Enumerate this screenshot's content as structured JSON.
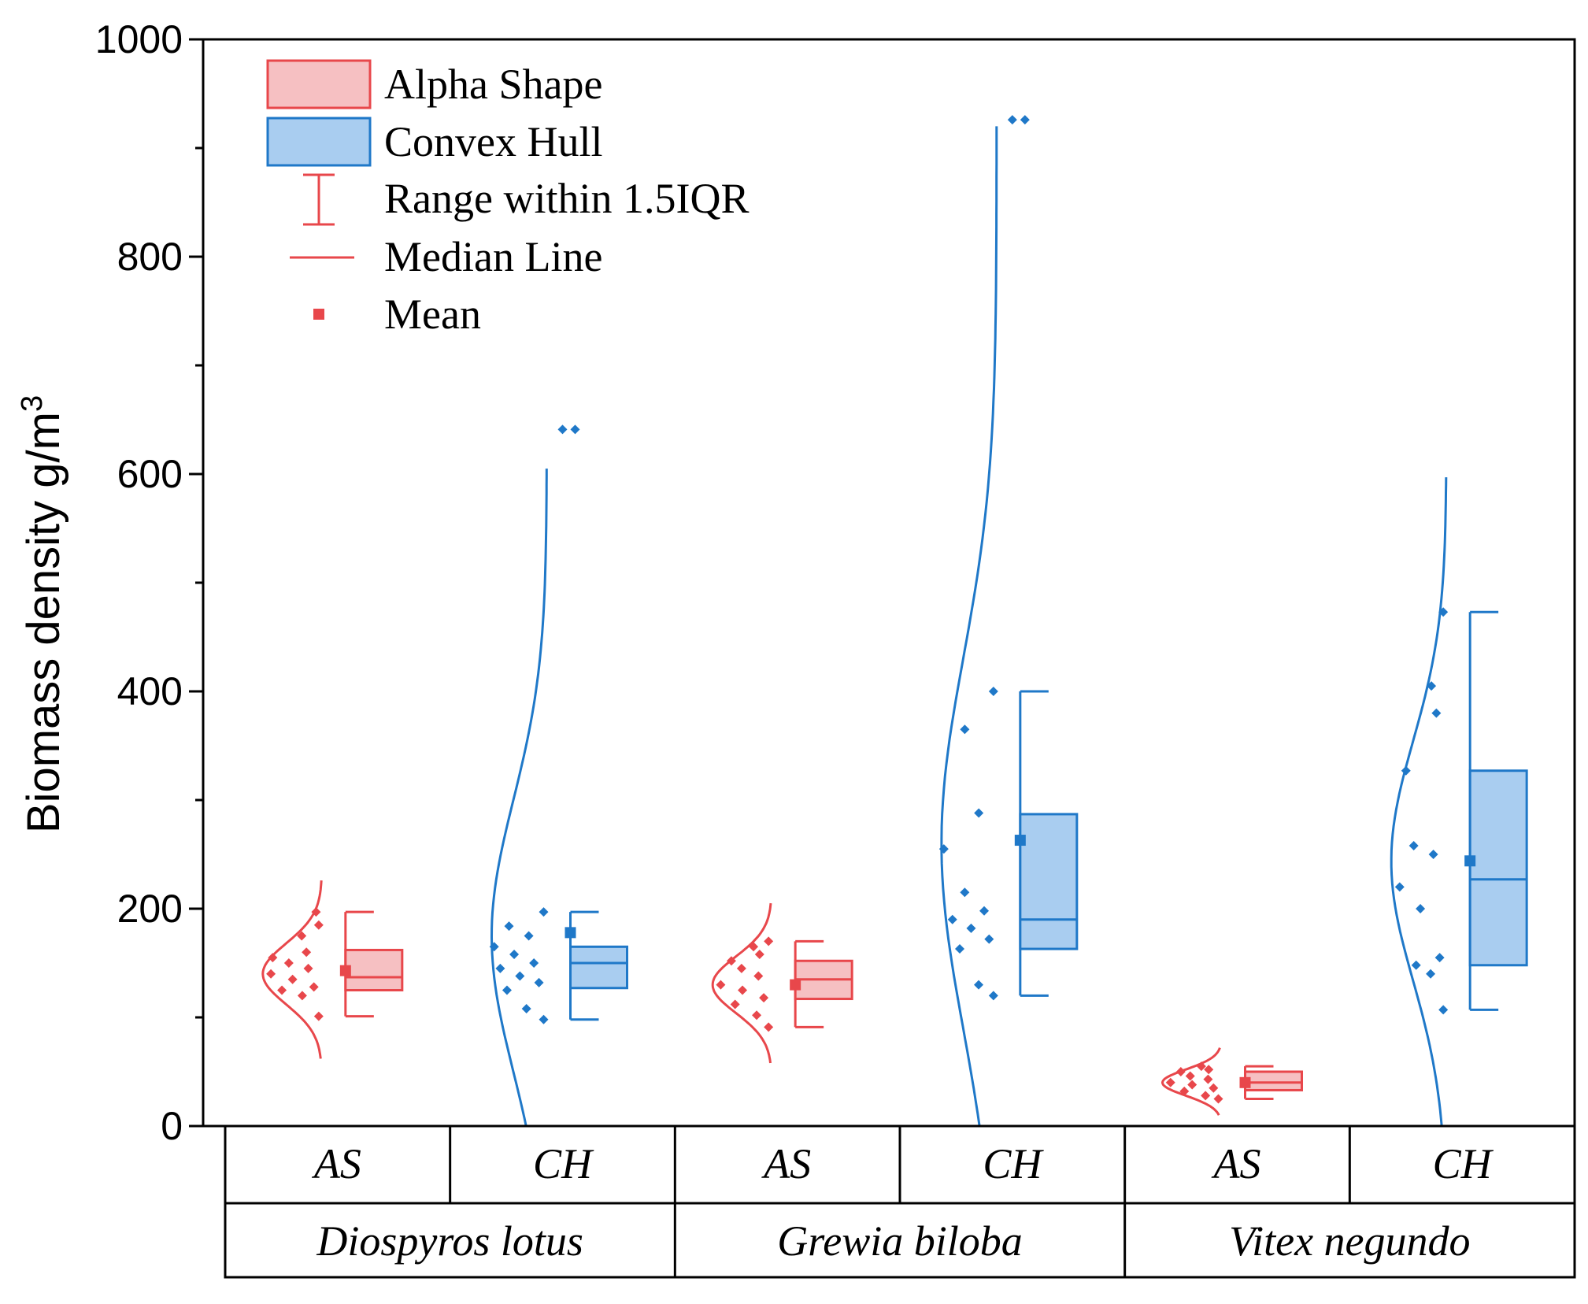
{
  "chart_data": {
    "type": "box",
    "ylabel": "Biomass density g/m",
    "ylabel_sup": "3",
    "ylim": [
      0,
      1000
    ],
    "yticks": [
      0,
      200,
      400,
      600,
      800,
      1000
    ],
    "yticks_minor": [
      100,
      300,
      500,
      700,
      900
    ],
    "colors": {
      "as_stroke": "#e8474b",
      "as_fill": "#f6c0c2",
      "ch_stroke": "#1f78c8",
      "ch_fill": "#a9cdf0"
    },
    "legend": {
      "alpha_shape": "Alpha Shape",
      "convex_hull": "Convex Hull",
      "range": "Range within 1.5IQR",
      "median": "Median Line",
      "mean": "Mean"
    },
    "species": [
      "Diospyros lotus",
      "Grewia biloba",
      "Vitex negundo"
    ],
    "methods": [
      "AS",
      "CH"
    ],
    "groups": [
      {
        "species": "Diospyros lotus",
        "method": "AS",
        "q1": 125,
        "median": 137,
        "q3": 162,
        "whisker_low": 101,
        "whisker_high": 197,
        "mean": 143,
        "points": [
          101,
          120,
          125,
          128,
          135,
          140,
          145,
          150,
          155,
          160,
          175,
          185,
          197
        ],
        "outliers": [],
        "curve": {
          "mu": 140,
          "sigma": 28,
          "lo": 62,
          "hi": 226
        }
      },
      {
        "species": "Diospyros lotus",
        "method": "CH",
        "q1": 127,
        "median": 150,
        "q3": 165,
        "whisker_low": 98,
        "whisker_high": 197,
        "mean": 178,
        "points": [
          98,
          108,
          125,
          132,
          138,
          145,
          150,
          158,
          165,
          175,
          184,
          197
        ],
        "outliers": [
          641
        ],
        "curve": {
          "mu": 175,
          "sigma": 125,
          "lo": 0,
          "hi": 605
        }
      },
      {
        "species": "Grewia biloba",
        "method": "AS",
        "q1": 117,
        "median": 135,
        "q3": 152,
        "whisker_low": 91,
        "whisker_high": 170,
        "mean": 130,
        "points": [
          91,
          102,
          112,
          118,
          125,
          130,
          138,
          145,
          152,
          158,
          165,
          170
        ],
        "outliers": [],
        "curve": {
          "mu": 130,
          "sigma": 26,
          "lo": 58,
          "hi": 205
        }
      },
      {
        "species": "Grewia biloba",
        "method": "CH",
        "q1": 163,
        "median": 190,
        "q3": 287,
        "whisker_low": 120,
        "whisker_high": 400,
        "mean": 263,
        "points": [
          120,
          130,
          163,
          172,
          182,
          190,
          198,
          215,
          255,
          288,
          365,
          400
        ],
        "outliers": [
          926
        ],
        "curve": {
          "mu": 260,
          "sigma": 170,
          "lo": 0,
          "hi": 920
        }
      },
      {
        "species": "Vitex negundo",
        "method": "AS",
        "q1": 33,
        "median": 40,
        "q3": 50,
        "whisker_low": 25,
        "whisker_high": 55,
        "mean": 40,
        "points": [
          25,
          28,
          32,
          35,
          38,
          40,
          43,
          46,
          50,
          52,
          55
        ],
        "outliers": [],
        "curve": {
          "mu": 40,
          "sigma": 12,
          "lo": 10,
          "hi": 72
        }
      },
      {
        "species": "Vitex negundo",
        "method": "CH",
        "q1": 148,
        "median": 227,
        "q3": 327,
        "whisker_low": 107,
        "whisker_high": 473,
        "mean": 244,
        "points": [
          107,
          140,
          148,
          155,
          200,
          220,
          250,
          258,
          327,
          380,
          405,
          473
        ],
        "outliers": [],
        "curve": {
          "mu": 244,
          "sigma": 110,
          "lo": 0,
          "hi": 597
        }
      }
    ]
  }
}
